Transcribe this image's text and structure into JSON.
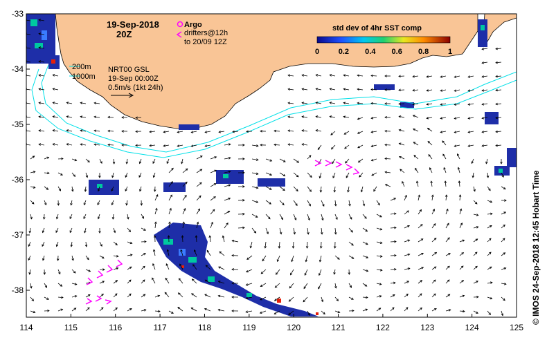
{
  "map": {
    "date_title": "19-Sep-2018",
    "time_title": "20Z",
    "argo_label": "Argo",
    "drifters_line1": "drifters@12h",
    "drifters_line2": "to 20/09 12Z",
    "depth_200": "200m",
    "depth_1000": "1000m",
    "gsl_line1": "NRT00 GSL",
    "gsl_line2": "19-Sep 00:00Z",
    "scale_label": "0.5m/s (1kt 24h)",
    "colorbar_title": "std dev of 4hr SST comp",
    "colorbar_ticks": [
      "0",
      "0.2",
      "0.4",
      "0.6",
      "0.8",
      "1"
    ],
    "credit": "© IMOS 24-Sep-2018 12:45 Hobart Time",
    "x_ticks": [
      "114",
      "115",
      "116",
      "117",
      "118",
      "119",
      "120",
      "121",
      "122",
      "123",
      "124",
      "125"
    ],
    "y_ticks": [
      "-33",
      "-34",
      "-35",
      "-36",
      "-37",
      "-38"
    ],
    "colors": {
      "land": "#f9c596",
      "isobath": "#00e0e8",
      "drifter": "#ff00ff",
      "sst_low": "#1e2ea8",
      "sst_mid": "#00c8a0",
      "sst_high": "#e6200a"
    }
  }
}
